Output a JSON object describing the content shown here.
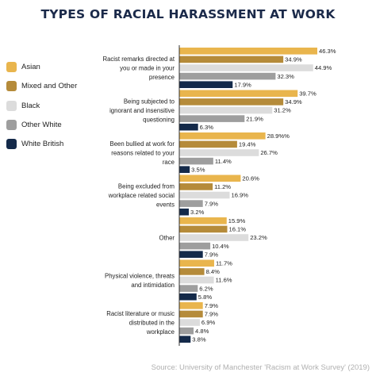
{
  "chart_data": {
    "type": "bar",
    "orientation": "horizontal",
    "title": "TYPES OF RACIAL HARASSMENT AT WORK",
    "source": "Source: University of Manchester 'Racism at Work Survey' (2019)",
    "legend_position": "left",
    "grid": false,
    "xlim": [
      0,
      50
    ],
    "categories": [
      [
        "Racist remarks directed at",
        "you or made in your",
        "presence"
      ],
      [
        "Being subjected to",
        "ignorant and insensitive",
        "questioning"
      ],
      [
        "Been bullied at work for",
        "reasons related to your",
        "race"
      ],
      [
        "Being excluded from",
        "workplace related social",
        "events"
      ],
      [
        "Other"
      ],
      [
        "Physical violence, threats",
        "and intimidation"
      ],
      [
        "Racist literature or music",
        "distributed in the",
        "workplace"
      ]
    ],
    "series": [
      {
        "name": "Asian",
        "color": "#e9b54d",
        "values": [
          46.3,
          39.7,
          28.9,
          20.6,
          15.9,
          11.7,
          7.9
        ]
      },
      {
        "name": "Mixed and Other",
        "color": "#b58b3a",
        "values": [
          34.9,
          34.9,
          19.4,
          11.2,
          16.1,
          8.4,
          7.9
        ]
      },
      {
        "name": "Black",
        "color": "#dcdcdc",
        "values": [
          44.9,
          31.2,
          26.7,
          16.9,
          23.2,
          11.6,
          6.9
        ]
      },
      {
        "name": "Other White",
        "color": "#9e9e9e",
        "values": [
          32.3,
          21.9,
          11.4,
          7.9,
          10.4,
          6.2,
          4.8
        ]
      },
      {
        "name": "White British",
        "color": "#142a4a",
        "values": [
          17.9,
          6.3,
          3.5,
          3.2,
          7.9,
          5.8,
          3.8
        ]
      }
    ],
    "value_labels": [
      [
        "46.3%",
        "34.9%",
        "44.9%",
        "32.3%",
        "17.9%"
      ],
      [
        "39.7%",
        "34.9%",
        "31.2%",
        "21.9%",
        "6.3%"
      ],
      [
        "28.9%%",
        "19.4%",
        "26.7%",
        "11.4%",
        "3.5%"
      ],
      [
        "20.6%",
        "11.2%",
        "16.9%",
        "7.9%",
        "3.2%"
      ],
      [
        "15.9%",
        "16.1%",
        "23.2%",
        "10.4%",
        "7.9%"
      ],
      [
        "11.7%",
        "8.4%",
        "11.6%",
        "6.2%",
        "5.8%"
      ],
      [
        "7.9%",
        "7.9%",
        "6.9%",
        "4.8%",
        "3.8%"
      ]
    ]
  }
}
